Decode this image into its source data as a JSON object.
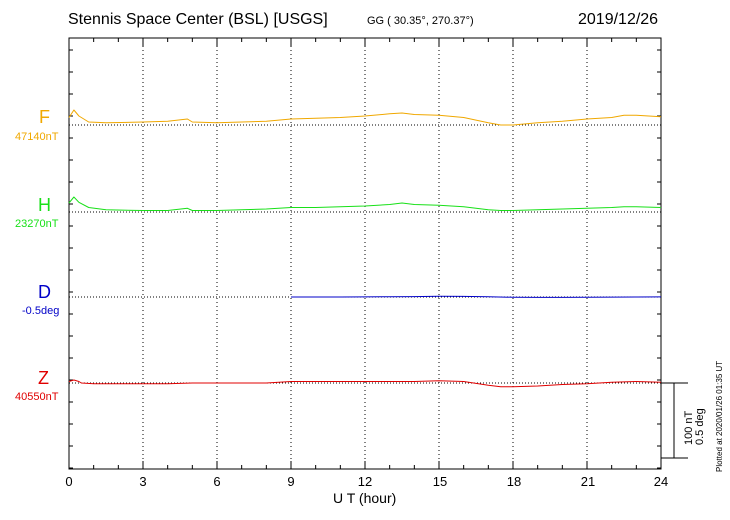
{
  "header": {
    "station": "Stennis Space Center (BSL)  [USGS]",
    "coords": "GG ( 30.35°, 270.37°)",
    "date": "2019/12/26"
  },
  "components": [
    {
      "label": "F",
      "base": "47140nT",
      "color": "#f0a800"
    },
    {
      "label": "H",
      "base": "23270nT",
      "color": "#18e018"
    },
    {
      "label": "D",
      "base": "-0.5deg",
      "color": "#0000c8"
    },
    {
      "label": "Z",
      "base": "40550nT",
      "color": "#e00000"
    }
  ],
  "axis": {
    "xlabel": "U T (hour)",
    "ticks": [
      "0",
      "3",
      "6",
      "9",
      "12",
      "15",
      "18",
      "21",
      "24"
    ]
  },
  "scale": {
    "nt": "100 nT",
    "deg": "0.5 deg"
  },
  "plotted": "Plotted at 2020/01/26 01:35 UT",
  "chart_data": {
    "type": "line",
    "title": "Stennis Space Center (BSL)  [USGS]",
    "xlabel": "U T (hour)",
    "xlim": [
      0,
      24
    ],
    "x_ticks": [
      0,
      3,
      6,
      9,
      12,
      15,
      18,
      21,
      24
    ],
    "grid": true,
    "scale_bar": {
      "nT": 100,
      "deg": 0.5
    },
    "series": [
      {
        "name": "F",
        "unit": "nT",
        "baseline": 47140,
        "color": "#f0a800",
        "x": [
          0,
          0.2,
          0.4,
          0.8,
          1.5,
          3,
          4,
          4.8,
          5,
          6,
          7,
          8,
          9,
          10,
          11,
          12,
          13,
          13.5,
          14,
          15,
          16,
          17,
          17.5,
          18,
          19,
          20,
          21,
          22,
          22.5,
          23,
          24
        ],
        "y": [
          47150,
          47160,
          47152,
          47144,
          47143,
          47144,
          47145,
          47148,
          47144,
          47143,
          47144,
          47145,
          47148,
          47149,
          47150,
          47152,
          47155,
          47156,
          47154,
          47153,
          47150,
          47143,
          47140,
          47140,
          47143,
          47145,
          47148,
          47150,
          47153,
          47153,
          47151
        ]
      },
      {
        "name": "H",
        "unit": "nT",
        "baseline": 23270,
        "color": "#18e018",
        "x": [
          0,
          0.2,
          0.4,
          0.8,
          1.5,
          3,
          4,
          4.8,
          5,
          6,
          7,
          8,
          9,
          10,
          11,
          12,
          13,
          13.5,
          14,
          15,
          16,
          17,
          17.5,
          18,
          19,
          20,
          21,
          22,
          22.5,
          23,
          24
        ],
        "y": [
          23282,
          23290,
          23283,
          23276,
          23273,
          23272,
          23272,
          23275,
          23272,
          23272,
          23273,
          23274,
          23276,
          23276,
          23277,
          23278,
          23280,
          23282,
          23280,
          23279,
          23277,
          23273,
          23272,
          23272,
          23273,
          23274,
          23275,
          23276,
          23277,
          23277,
          23276
        ]
      },
      {
        "name": "D",
        "unit": "deg",
        "baseline": -0.5,
        "color": "#0000c8",
        "x": [
          9,
          10,
          11,
          12,
          13,
          14,
          15,
          16,
          17,
          18,
          19,
          20,
          21,
          22,
          23,
          24
        ],
        "y": [
          -0.5,
          -0.5,
          -0.5,
          -0.499,
          -0.498,
          -0.497,
          -0.495,
          -0.496,
          -0.498,
          -0.502,
          -0.503,
          -0.503,
          -0.502,
          -0.501,
          -0.5,
          -0.499
        ]
      },
      {
        "name": "Z",
        "unit": "nT",
        "baseline": 40550,
        "color": "#e00000",
        "x": [
          0,
          0.2,
          0.4,
          0.5,
          1,
          2,
          3,
          4,
          5,
          6,
          7,
          8,
          9,
          10,
          11,
          12,
          13,
          14,
          15,
          16,
          17,
          17.5,
          18,
          19,
          20,
          21,
          22,
          23,
          24
        ],
        "y": [
          40552,
          40554,
          40552,
          40550,
          40549,
          40549,
          40549,
          40549,
          40550,
          40550,
          40550,
          40550,
          40552,
          40552,
          40552,
          40552,
          40552,
          40552,
          40553,
          40552,
          40547,
          40545,
          40545,
          40546,
          40548,
          40549,
          40551,
          40552,
          40551
        ]
      }
    ]
  }
}
